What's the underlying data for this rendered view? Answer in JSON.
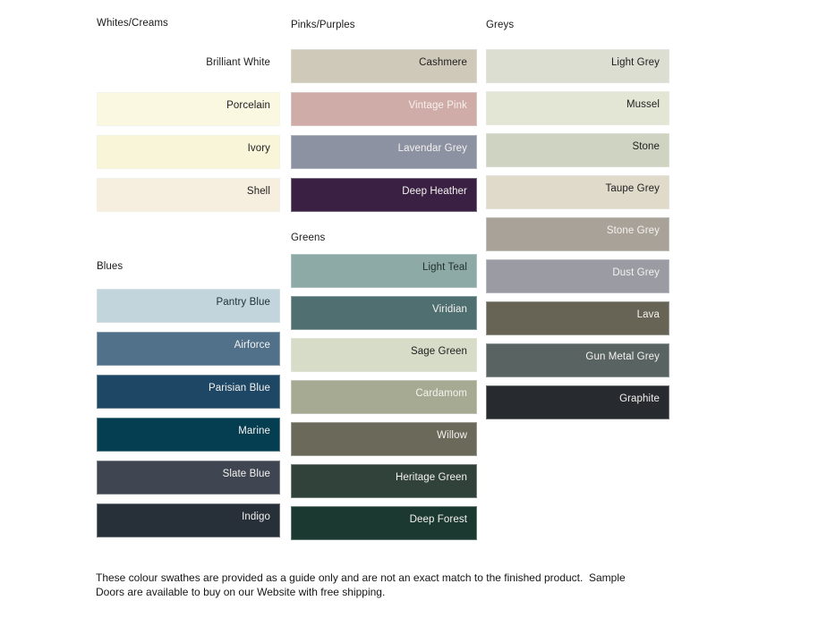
{
  "groups": [
    {
      "title": "Whites/Creams",
      "swatches": [
        {
          "label": "Brilliant White",
          "color": "#FFFFFF",
          "text_color": "#1e1e1e"
        },
        {
          "label": "Porcelain",
          "color": "#FBF8E2",
          "text_color": "#1e1e1e"
        },
        {
          "label": "Ivory",
          "color": "#F9F5D9",
          "text_color": "#1e1e1e"
        },
        {
          "label": "Shell",
          "color": "#F6EFE0",
          "text_color": "#1e1e1e"
        }
      ]
    },
    {
      "title": "Blues",
      "swatches": [
        {
          "label": "Pantry Blue",
          "color": "#C3D5DC",
          "text_color": "#233038"
        },
        {
          "label": "Airforce",
          "color": "#51708A",
          "text_color": "#F4F2EF"
        },
        {
          "label": "Parisian Blue",
          "color": "#1E4766",
          "text_color": "#F4F2EF"
        },
        {
          "label": "Marine",
          "color": "#053E51",
          "text_color": "#F4F2EF"
        },
        {
          "label": "Slate Blue",
          "color": "#3F4551",
          "text_color": "#F4F2EF"
        },
        {
          "label": "Indigo",
          "color": "#272F39",
          "text_color": "#F4F2EF"
        }
      ]
    },
    {
      "title": "Pinks/Purples",
      "swatches": [
        {
          "label": "Cashmere",
          "color": "#CFC9B9",
          "text_color": "#1e1e1e"
        },
        {
          "label": "Vintage Pink",
          "color": "#D0ACA8",
          "text_color": "#F6F0EC"
        },
        {
          "label": "Lavendar Grey",
          "color": "#8D92A3",
          "text_color": "#F4F2EF"
        },
        {
          "label": "Deep Heather",
          "color": "#3A2144",
          "text_color": "#F4F2EF"
        }
      ]
    },
    {
      "title": "Greens",
      "swatches": [
        {
          "label": "Light Teal",
          "color": "#8DAAA6",
          "text_color": "#22302e"
        },
        {
          "label": "Viridian",
          "color": "#506F70",
          "text_color": "#F4F2EF"
        },
        {
          "label": "Sage Green",
          "color": "#D7DCC8",
          "text_color": "#1e1e1e"
        },
        {
          "label": "Cardamom",
          "color": "#A7AA92",
          "text_color": "#F4F2EF"
        },
        {
          "label": "Willow",
          "color": "#6B6959",
          "text_color": "#F4F2EF"
        },
        {
          "label": "Heritage Green",
          "color": "#304239",
          "text_color": "#F4F2EF"
        },
        {
          "label": "Deep Forest",
          "color": "#1B3831",
          "text_color": "#F4F2EF"
        }
      ]
    },
    {
      "title": "Greys",
      "swatches": [
        {
          "label": "Light Grey",
          "color": "#DCDED2",
          "text_color": "#1e1e1e"
        },
        {
          "label": "Mussel",
          "color": "#E3E5D5",
          "text_color": "#1e1e1e"
        },
        {
          "label": "Stone",
          "color": "#CFD3C2",
          "text_color": "#1e1e1e"
        },
        {
          "label": "Taupe Grey",
          "color": "#E0DACB",
          "text_color": "#1e1e1e"
        },
        {
          "label": "Stone Grey",
          "color": "#A9A299",
          "text_color": "#F4F2EF"
        },
        {
          "label": "Dust Grey",
          "color": "#9A9BA3",
          "text_color": "#F4F2EF"
        },
        {
          "label": "Lava",
          "color": "#676456",
          "text_color": "#F4F2EF"
        },
        {
          "label": "Gun Metal Grey",
          "color": "#596462",
          "text_color": "#F4F2EF"
        },
        {
          "label": "Graphite",
          "color": "#272B30",
          "text_color": "#F4F2EF"
        }
      ]
    }
  ],
  "footer": {
    "lines": [
      "These colour swathes are provided as a guide only and are not an exact match to the finished product.  Sample",
      "Doors are available to buy on our Website with free shipping."
    ]
  }
}
